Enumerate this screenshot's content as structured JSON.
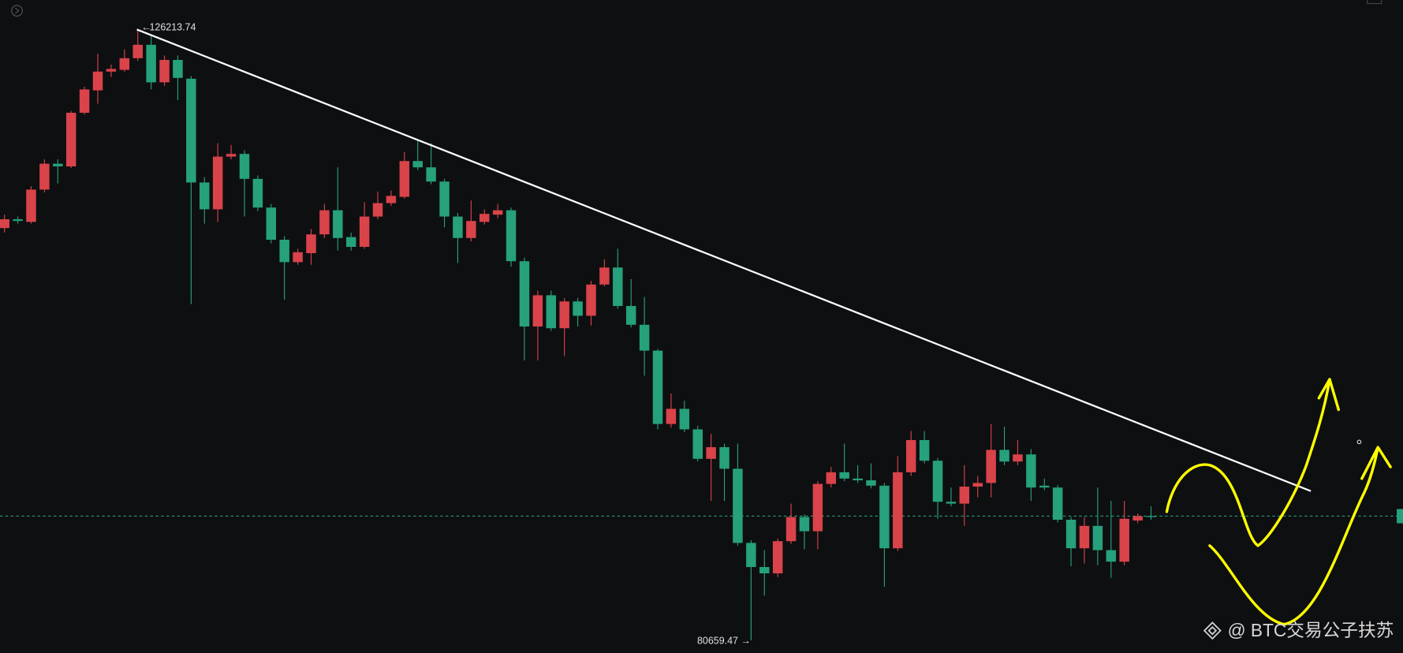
{
  "chart_data": {
    "type": "candlestick",
    "up_color": "#d9434a",
    "down_color": "#26a17b",
    "ylim": [
      79720,
      128420
    ],
    "watermark": "@ BTC交易公子扶苏",
    "open": [
      111410,
      112070,
      111870,
      114280,
      116210,
      116010,
      120010,
      121680,
      123080,
      123210,
      124080,
      125080,
      122280,
      123950,
      122550,
      114810,
      112810,
      116740,
      116940,
      115080,
      112940,
      110540,
      108870,
      109540,
      110940,
      112740,
      110740,
      110010,
      112270,
      113270,
      113740,
      116410,
      115940,
      114880,
      112270,
      110670,
      111870,
      112410,
      112740,
      108940,
      104070,
      106400,
      103940,
      105940,
      104870,
      107200,
      108470,
      105600,
      104200,
      102270,
      96800,
      97930,
      96400,
      94200,
      95070,
      93460,
      87930,
      86130,
      85660,
      88060,
      89860,
      88800,
      92330,
      93200,
      92730,
      92600,
      92200,
      87530,
      93200,
      95600,
      94060,
      91000,
      90860,
      92130,
      92400,
      94870,
      94000,
      94530,
      92200,
      92060,
      89660,
      87530,
      89200,
      87390,
      86530,
      89600,
      89930
    ],
    "high": [
      112410,
      112270,
      114540,
      116540,
      116540,
      120140,
      121950,
      124410,
      123610,
      124750,
      126213.74,
      125750,
      124280,
      124280,
      122750,
      115210,
      117740,
      117610,
      117210,
      115340,
      113210,
      110810,
      109870,
      111340,
      113210,
      115940,
      111070,
      113340,
      114140,
      114210,
      117080,
      117940,
      117740,
      115080,
      112540,
      113470,
      112810,
      113210,
      112940,
      109210,
      106740,
      106740,
      106200,
      106200,
      107470,
      109070,
      109870,
      107600,
      106270,
      102400,
      99070,
      98530,
      96670,
      96070,
      95330,
      95330,
      88130,
      87390,
      88260,
      90860,
      90060,
      92530,
      93600,
      95330,
      93730,
      93860,
      92400,
      94400,
      96270,
      96270,
      94270,
      92060,
      93730,
      92930,
      96800,
      96600,
      95600,
      94930,
      92730,
      92260,
      89860,
      89860,
      92060,
      91060,
      91060,
      90130,
      90660
    ],
    "low": [
      111070,
      111740,
      111740,
      114070,
      114740,
      115880,
      119880,
      120680,
      122680,
      123080,
      123880,
      121750,
      122010,
      120950,
      105740,
      111740,
      111870,
      116540,
      112270,
      112670,
      110270,
      106070,
      108670,
      108670,
      110670,
      109740,
      109740,
      109870,
      112070,
      113070,
      113610,
      115740,
      114680,
      111470,
      108810,
      110410,
      111670,
      112140,
      108540,
      101540,
      101540,
      103740,
      101870,
      104070,
      104140,
      107070,
      105400,
      104000,
      100400,
      96400,
      96530,
      96200,
      94000,
      91060,
      91060,
      87730,
      80659.47,
      83990,
      85390,
      87860,
      87460,
      87460,
      92060,
      92530,
      92400,
      92000,
      84660,
      87330,
      92930,
      93860,
      89730,
      90660,
      89200,
      91330,
      91330,
      93730,
      93730,
      91060,
      91860,
      89460,
      86190,
      86390,
      86260,
      85330,
      86260,
      89400,
      89660
    ],
    "close": [
      112070,
      111940,
      114280,
      116210,
      116010,
      120010,
      121750,
      123080,
      123280,
      124080,
      125080,
      122280,
      123950,
      122610,
      114810,
      112810,
      116740,
      116940,
      115080,
      112940,
      110540,
      108870,
      109610,
      110940,
      112740,
      110670,
      110010,
      112270,
      113270,
      113810,
      116410,
      115940,
      114880,
      112270,
      110670,
      111940,
      112470,
      112740,
      108940,
      104070,
      106400,
      103940,
      105940,
      104870,
      107200,
      108470,
      105600,
      104200,
      102270,
      96800,
      97930,
      96400,
      94200,
      95070,
      93460,
      87930,
      86130,
      85660,
      88060,
      89860,
      88800,
      92330,
      93200,
      92730,
      92600,
      92200,
      87530,
      93200,
      95600,
      94060,
      91000,
      90860,
      92130,
      92400,
      94870,
      94000,
      94530,
      92060,
      92060,
      89660,
      87530,
      89200,
      87390,
      86530,
      89730,
      89930,
      89860
    ]
  }
}
